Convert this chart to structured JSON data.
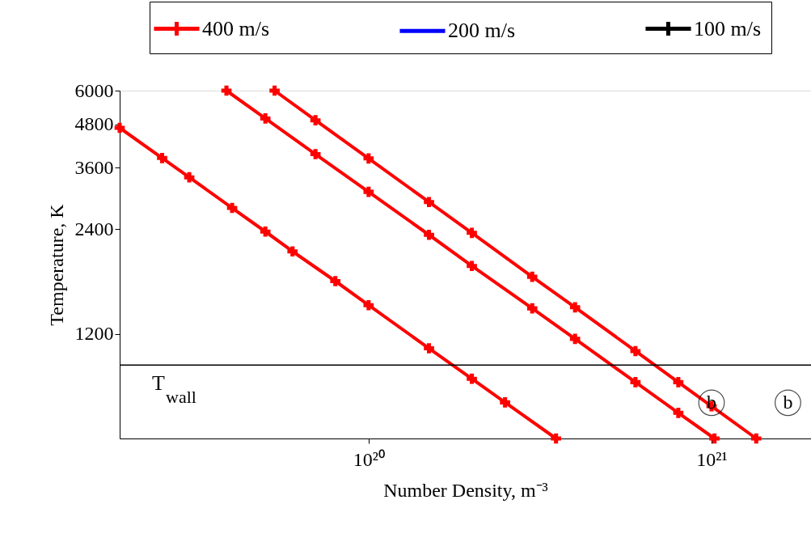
{
  "chart_data": {
    "type": "line",
    "xlabel": "Number Density, m⁻³",
    "ylabel": "Temperature, K",
    "log": "xy",
    "grid": false,
    "legend": "top",
    "marker": "cross",
    "line_style": "solid",
    "xlim": [
      1.88e+19,
      1.95e+21
    ],
    "ylim": [
      600,
      6000
    ],
    "xticks": [
      {
        "value": 1e+20,
        "label": "10²⁰"
      },
      {
        "value": 1e+21,
        "label": "10²¹"
      }
    ],
    "yticks": [
      1200,
      2400,
      3600,
      4800,
      6000
    ],
    "series": [
      {
        "name": "400 m/s",
        "color": "#ff0000",
        "x": [
          1.88e+19,
          2.5e+19,
          3e+19,
          4e+19,
          5e+19,
          6e+19,
          8e+19,
          1e+20,
          1.5e+20,
          2e+20,
          2.5e+20,
          3.52e+20
        ],
        "values": [
          4690,
          3840,
          3380,
          2760,
          2360,
          2070,
          1700,
          1450,
          1090,
          891,
          762,
          600
        ]
      },
      {
        "name": "200 m/s",
        "color": "#0000ff",
        "marker": "none"
      },
      {
        "name": "100 m/s",
        "color": "#000000",
        "marker": "cross"
      },
      {
        "color": "#ff0000",
        "x": [
          3.85e+19,
          5e+19,
          7e+19,
          1e+20,
          1.5e+20,
          2e+20,
          3e+20,
          4e+20,
          6e+20,
          8e+20,
          1.02e+21
        ],
        "values": [
          6000,
          4990,
          3940,
          3070,
          2310,
          1880,
          1420,
          1160,
          871,
          711,
          600
        ]
      },
      {
        "color": "#ff0000",
        "x": [
          5.32e+19,
          7e+19,
          1e+20,
          1.5e+20,
          2e+20,
          3e+20,
          4e+20,
          6e+20,
          8e+20,
          1e+21,
          1.35e+21
        ],
        "values": [
          6000,
          4930,
          3830,
          2870,
          2340,
          1750,
          1430,
          1070,
          871,
          743,
          600
        ]
      }
    ],
    "ref_lines": [
      {
        "axis": "y",
        "value": 975,
        "label": "T$_{wall}$",
        "color": "#000000",
        "line_style": "solid"
      }
    ],
    "annotations": [
      {
        "text": "b",
        "x": 1e+21,
        "y": 760
      },
      {
        "text": "b",
        "x": 1.67e+21,
        "y": 760
      }
    ]
  }
}
